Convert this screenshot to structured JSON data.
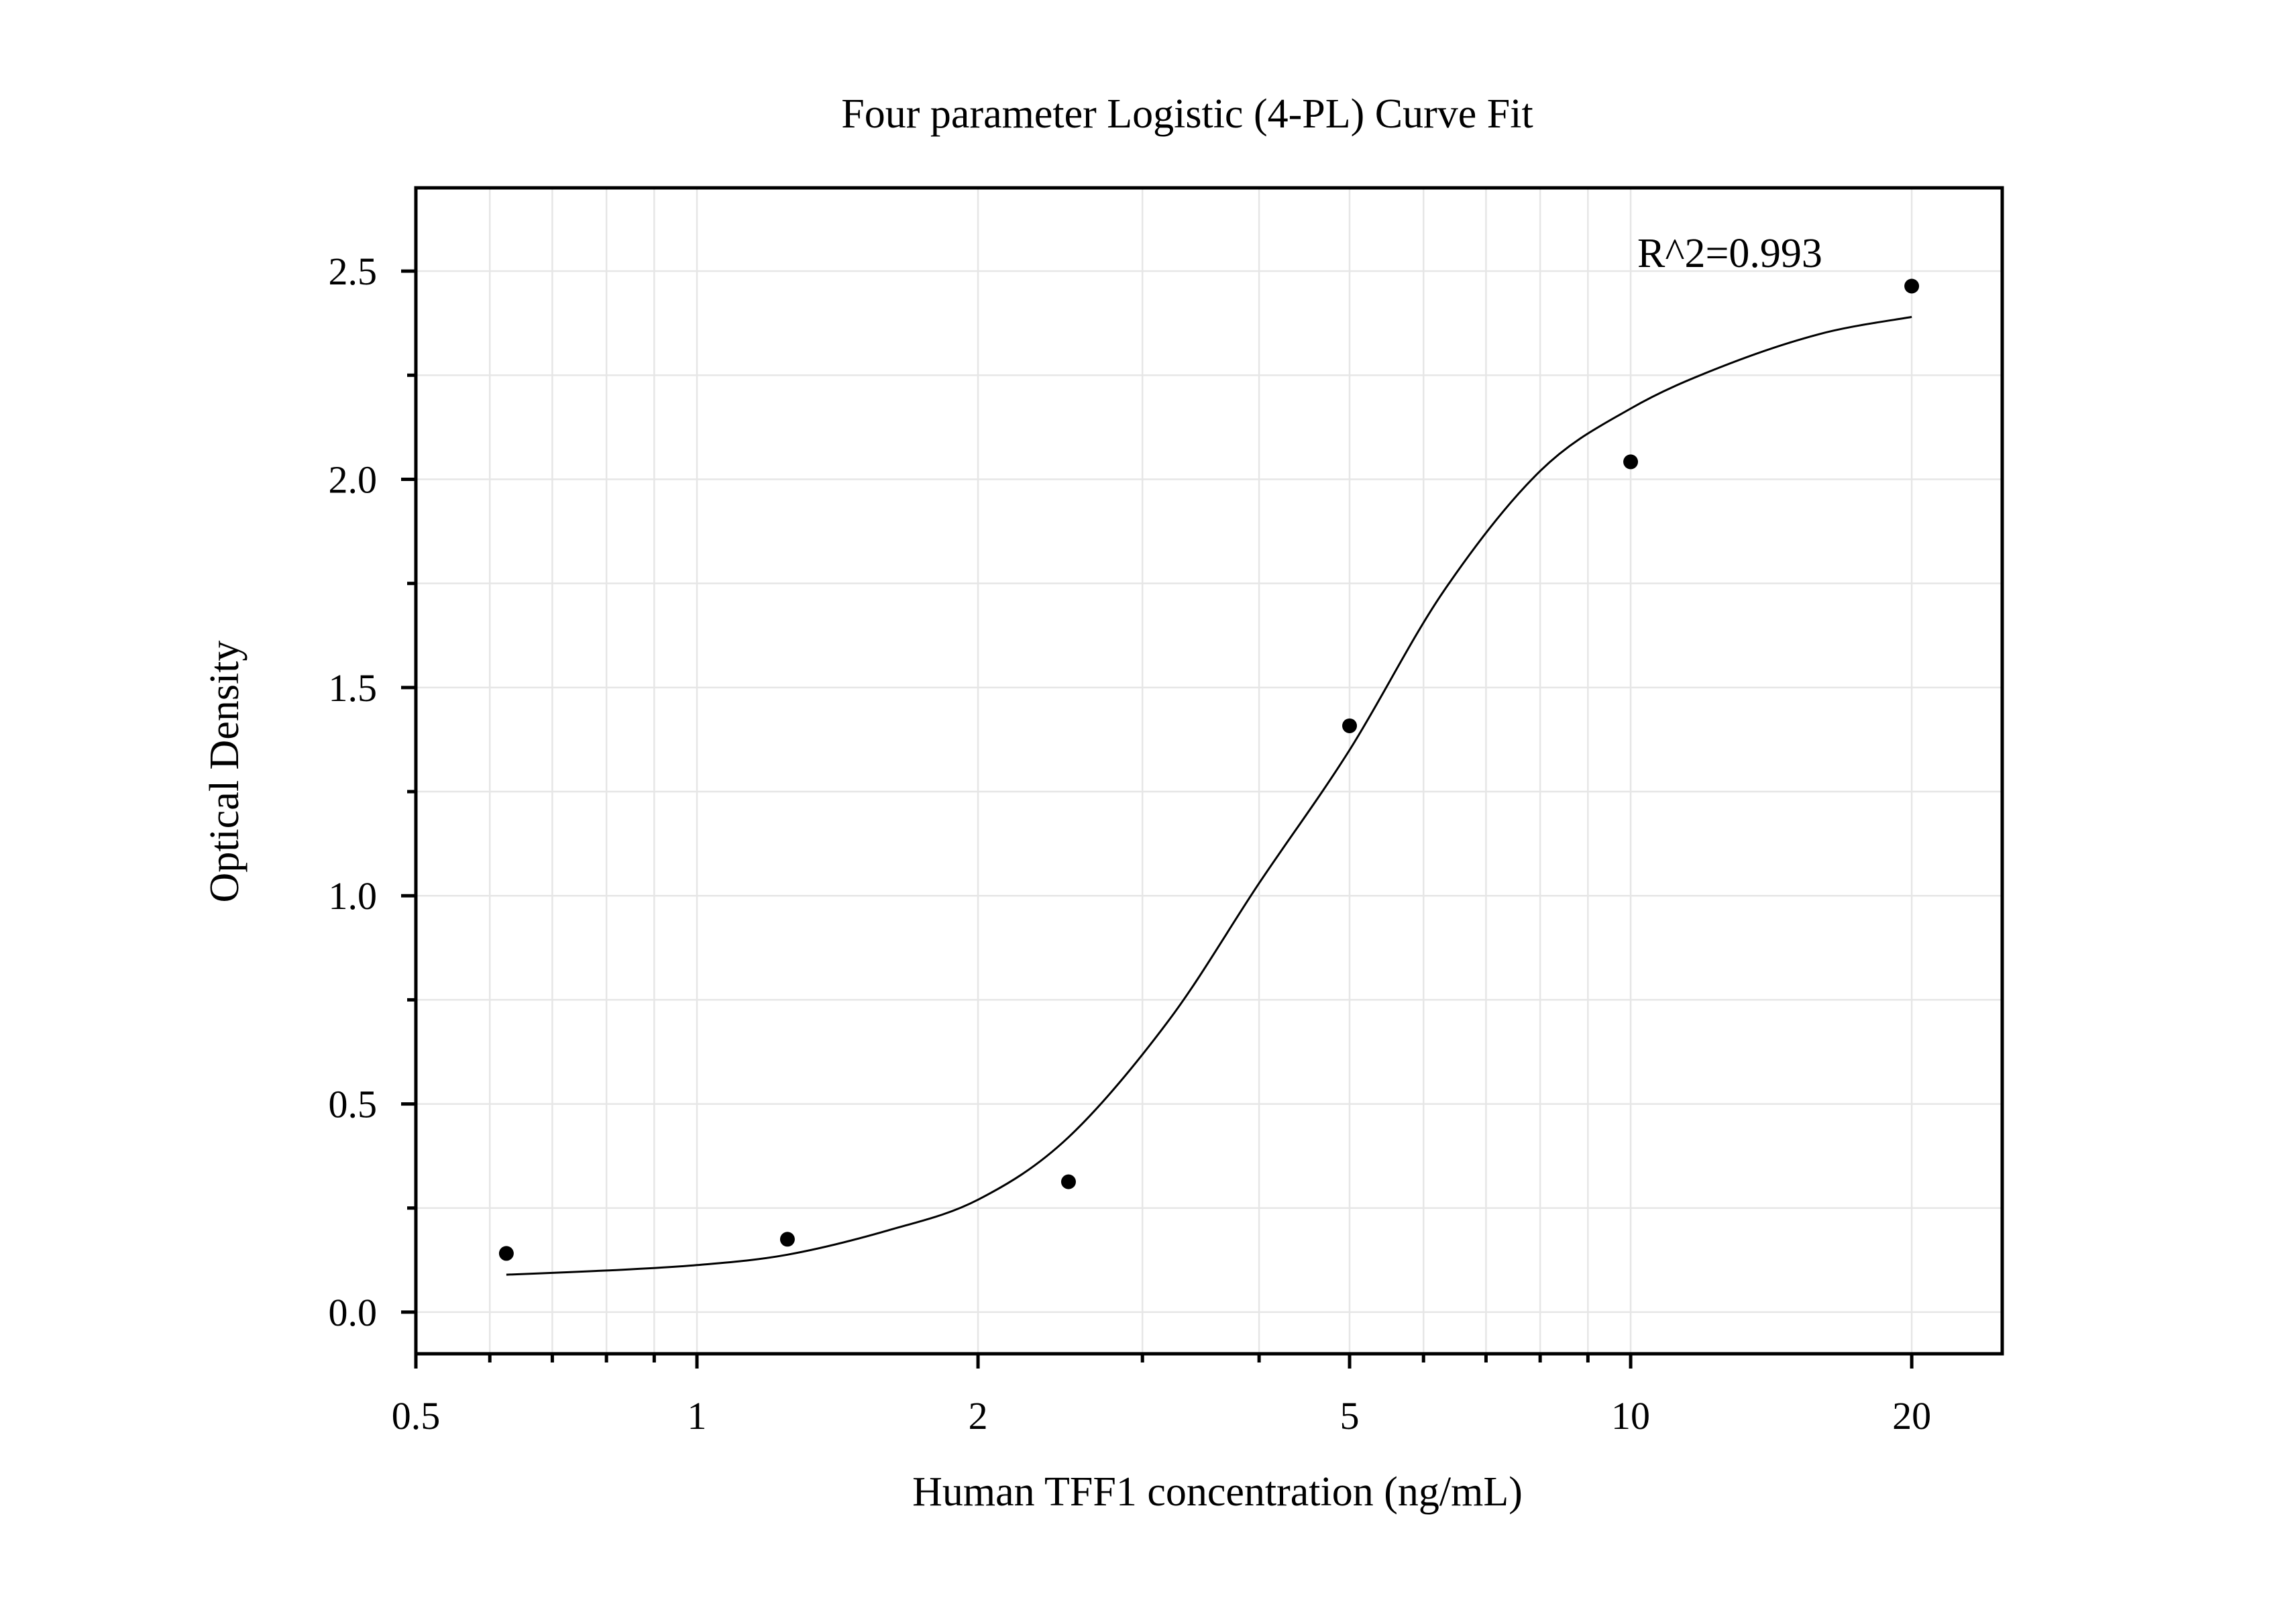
{
  "chart_data": {
    "type": "scatter",
    "title": "Four parameter Logistic (4-PL) Curve Fit",
    "xlabel": "Human TFF1 concentration (ng/mL)",
    "ylabel": "Optical Density",
    "x_scale": "log",
    "xlim": [
      0.5,
      25
    ],
    "ylim": [
      -0.1,
      2.7
    ],
    "x_ticks": [
      0.5,
      1,
      2,
      5,
      10,
      20
    ],
    "x_tick_labels": [
      "0.5",
      "1",
      "2",
      "5",
      "10",
      "20"
    ],
    "y_ticks": [
      0.0,
      0.5,
      1.0,
      1.5,
      2.0,
      2.5
    ],
    "y_tick_labels": [
      "0.0",
      "0.5",
      "1.0",
      "1.5",
      "2.0",
      "2.5"
    ],
    "grid": true,
    "annotation": "R^2=0.993",
    "series": [
      {
        "type": "scatter",
        "x": [
          0.625,
          1.25,
          2.5,
          5,
          10,
          20
        ],
        "y": [
          0.141,
          0.175,
          0.313,
          1.408,
          2.042,
          2.464
        ]
      },
      {
        "type": "line",
        "x": [
          0.625,
          0.8,
          1,
          1.25,
          1.6,
          2,
          2.5,
          3.2,
          4,
          5,
          6.3,
          8,
          10,
          12.5,
          16,
          20
        ],
        "y": [
          0.09,
          0.1,
          0.113,
          0.138,
          0.196,
          0.27,
          0.42,
          0.7,
          1.03,
          1.35,
          1.73,
          2.02,
          2.17,
          2.27,
          2.35,
          2.39
        ]
      }
    ],
    "colors": {
      "points": "#000000",
      "line": "#000000",
      "grid": "#e6e6e6",
      "frame": "#000000"
    }
  }
}
